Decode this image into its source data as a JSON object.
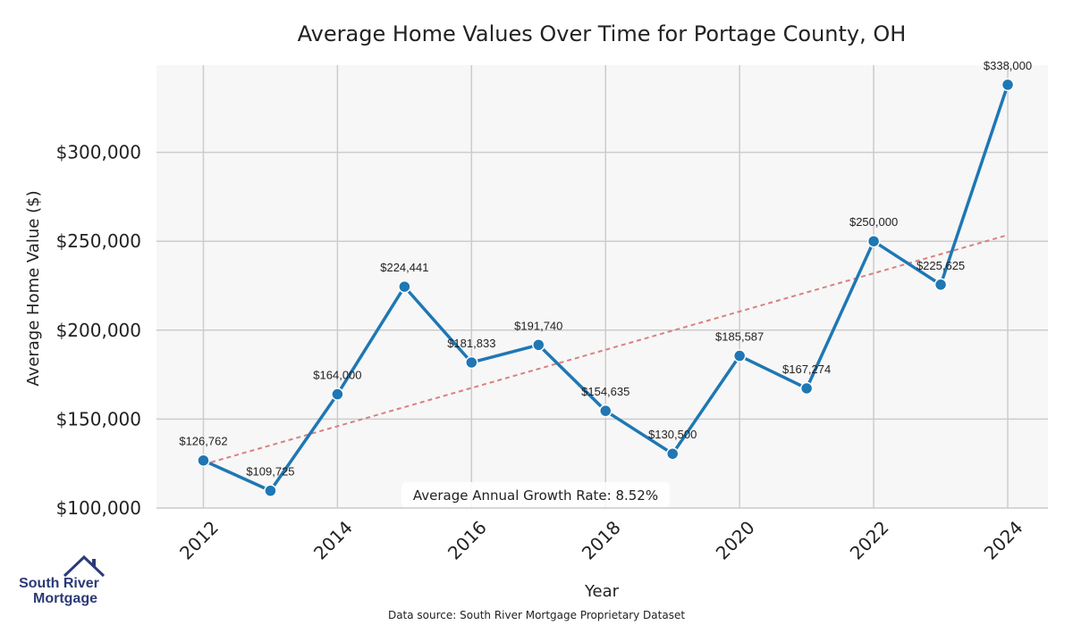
{
  "chart_data": {
    "type": "line",
    "title": "Average Home Values Over Time for Portage County, OH",
    "xlabel": "Year",
    "ylabel": "Average Home Value ($)",
    "x": [
      2012,
      2013,
      2014,
      2015,
      2016,
      2017,
      2018,
      2019,
      2020,
      2021,
      2022,
      2023,
      2024
    ],
    "values": [
      126762,
      109725,
      164000,
      224441,
      181833,
      191740,
      154635,
      130500,
      185587,
      167274,
      250000,
      225625,
      338000
    ],
    "data_labels": [
      "$126,762",
      "$109,725",
      "$164,000",
      "$224,441",
      "$181,833",
      "$191,740",
      "$154,635",
      "$130,500",
      "$185,587",
      "$167,274",
      "$250,000",
      "$225,625",
      "$338,000"
    ],
    "x_ticks": [
      "2012",
      "2014",
      "2016",
      "2018",
      "2020",
      "2022",
      "2024"
    ],
    "y_ticks": [
      100000,
      150000,
      200000,
      250000,
      300000
    ],
    "y_tick_labels": [
      "$100,000",
      "$150,000",
      "$200,000",
      "$250,000",
      "$300,000"
    ],
    "xlim": [
      2011.3,
      2024.6
    ],
    "ylim": [
      100000,
      349000
    ],
    "trend_line": {
      "x": [
        2012,
        2024
      ],
      "y": [
        124500,
        253500
      ]
    },
    "grid": true,
    "line_color": "#1f77b4",
    "trend_color": "#d98080",
    "plot_background": "#f7f7f7",
    "grid_color": "#cccccc"
  },
  "annotation": {
    "text": "Average Annual Growth Rate: 8.52%"
  },
  "source_note": "Data source: South River Mortgage Proprietary Dataset",
  "logo": {
    "line1": "South River",
    "line2": "Mortgage",
    "icon": "house-icon"
  }
}
